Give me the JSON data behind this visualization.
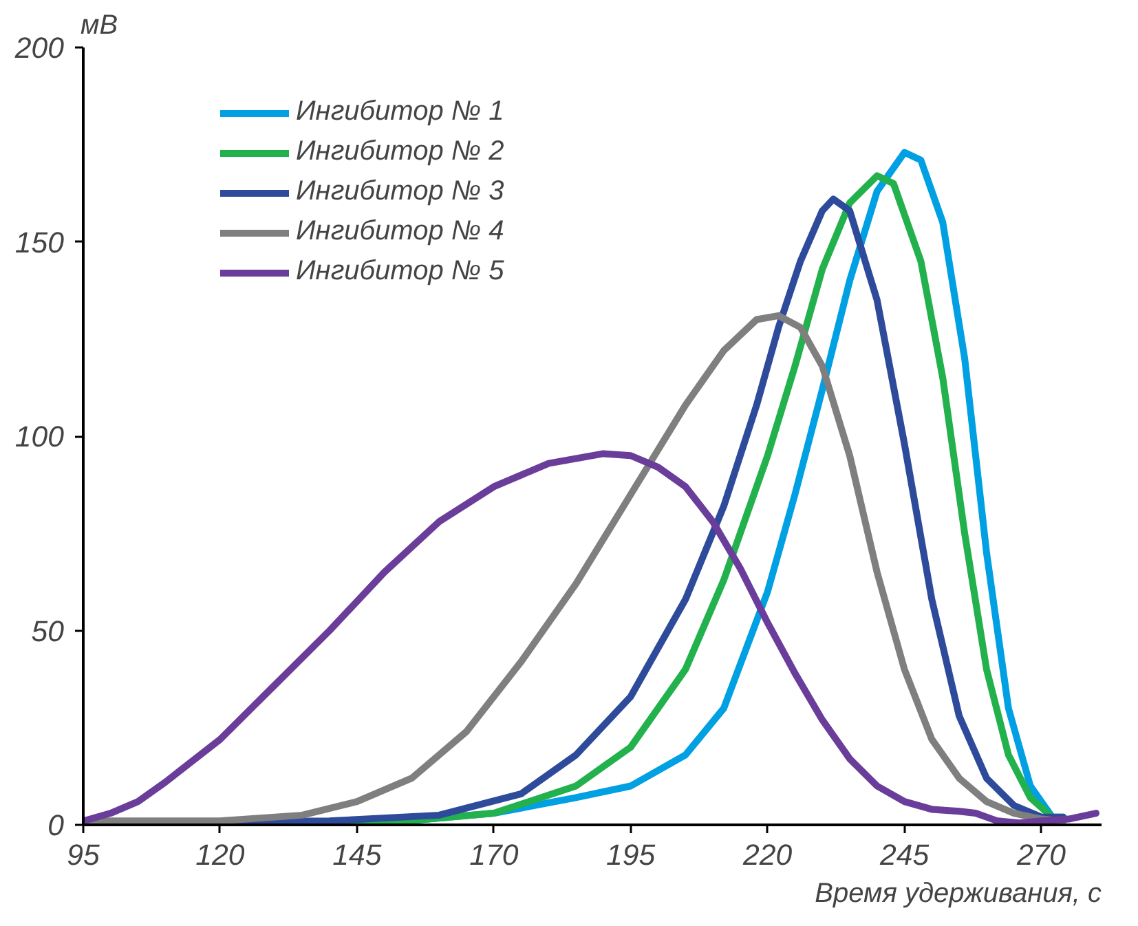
{
  "chart_data": {
    "type": "line",
    "xlabel": "Время удерживания, с",
    "ylabel": "мВ",
    "xlim": [
      95,
      281
    ],
    "ylim": [
      0,
      200
    ],
    "xticks": [
      95,
      120,
      145,
      170,
      195,
      220,
      245,
      270
    ],
    "yticks": [
      0,
      50,
      100,
      150,
      200
    ],
    "grid": false,
    "legend": "top left",
    "marker": "none",
    "line_style": "solid",
    "series": [
      {
        "name": "Ингибитор № 1",
        "color": "#00a0e3",
        "x": [
          95,
          150,
          170,
          185,
          195,
          205,
          212,
          220,
          225,
          230,
          235,
          240,
          245,
          248,
          252,
          256,
          260,
          264,
          268,
          272,
          274
        ],
        "values": [
          0,
          0.5,
          3,
          7,
          10,
          18,
          30,
          60,
          85,
          112,
          140,
          163,
          173,
          171,
          155,
          120,
          70,
          30,
          10,
          2,
          1
        ]
      },
      {
        "name": "Ингибитор № 2",
        "color": "#22b14c",
        "x": [
          95,
          150,
          170,
          185,
          195,
          205,
          212,
          220,
          225,
          230,
          235,
          240,
          243,
          248,
          252,
          256,
          260,
          264,
          268,
          272,
          274
        ],
        "values": [
          0,
          0.5,
          3,
          10,
          20,
          40,
          63,
          95,
          118,
          143,
          160,
          167,
          165,
          145,
          115,
          75,
          40,
          18,
          7,
          2,
          2
        ]
      },
      {
        "name": "Ингибитор № 3",
        "color": "#2e4a9b",
        "x": [
          95,
          140,
          160,
          175,
          185,
          195,
          205,
          212,
          218,
          222,
          226,
          230,
          232,
          235,
          240,
          245,
          250,
          255,
          260,
          265,
          270,
          274
        ],
        "values": [
          0.5,
          1,
          2.5,
          8,
          18,
          33,
          58,
          82,
          108,
          128,
          145,
          158,
          161,
          158,
          135,
          98,
          58,
          28,
          12,
          5,
          2,
          2
        ]
      },
      {
        "name": "Ингибитор № 4",
        "color": "#7f7f7f",
        "x": [
          95,
          120,
          135,
          145,
          155,
          165,
          175,
          185,
          195,
          205,
          212,
          218,
          222,
          226,
          230,
          235,
          240,
          245,
          250,
          255,
          260,
          265,
          270,
          274
        ],
        "values": [
          1,
          1,
          2.5,
          6,
          12,
          24,
          42,
          62,
          85,
          108,
          122,
          130,
          131,
          128,
          118,
          95,
          65,
          40,
          22,
          12,
          6,
          3,
          1.5,
          1
        ]
      },
      {
        "name": "Ингибитор № 5",
        "color": "#6a3d9a",
        "x": [
          95,
          100,
          105,
          110,
          120,
          130,
          140,
          150,
          160,
          170,
          180,
          190,
          195,
          200,
          205,
          210,
          215,
          220,
          225,
          230,
          235,
          240,
          245,
          250,
          255,
          258,
          262,
          266,
          270,
          275,
          280
        ],
        "values": [
          1,
          3,
          6,
          11,
          22,
          36,
          50,
          65,
          78,
          87,
          93,
          95.5,
          95,
          92,
          87,
          78,
          66,
          52,
          39,
          27,
          17,
          10,
          6,
          4,
          3.5,
          3,
          1,
          0.5,
          1,
          1.5,
          3
        ]
      }
    ]
  }
}
